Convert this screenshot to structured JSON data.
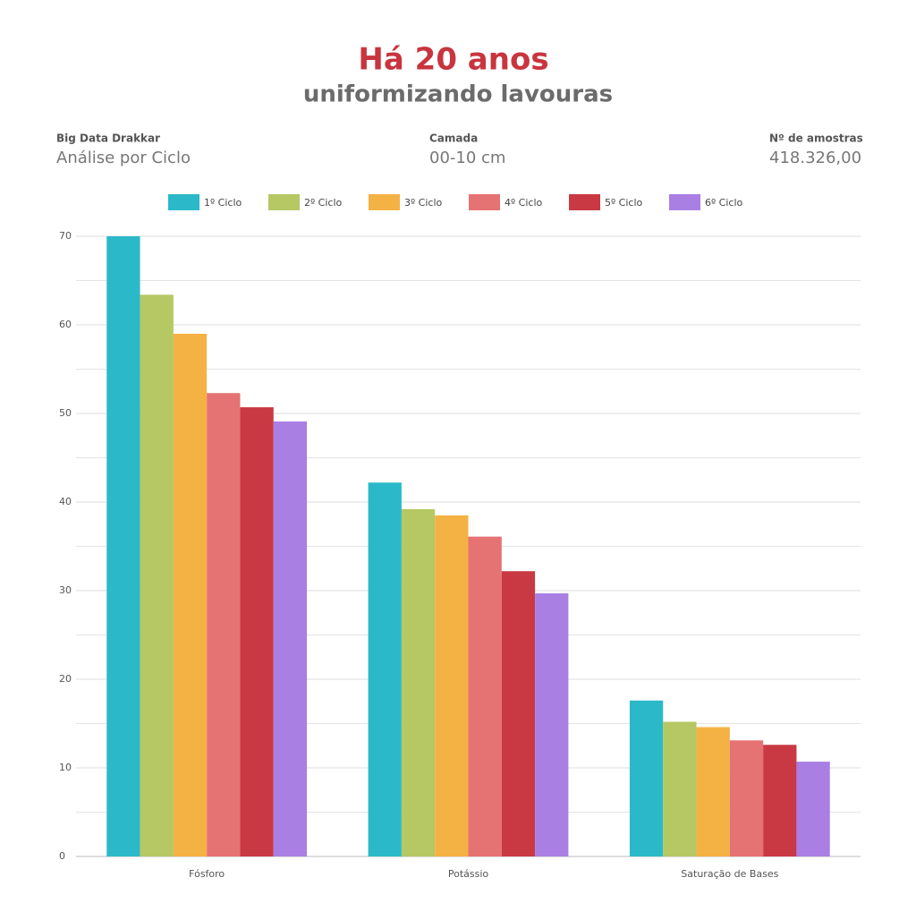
{
  "chart_data": {
    "type": "bar",
    "title": "Há 20 anos",
    "subtitle": "uniformizando lavouras",
    "header_info": [
      {
        "label": "Big Data Drakkar",
        "value": "Análise por Ciclo"
      },
      {
        "label": "Camada",
        "value": "00-10 cm"
      },
      {
        "label": "Nº de amostras",
        "value": "418.326,00"
      }
    ],
    "categories": [
      "Fósforo",
      "Potássio",
      "Saturação de Bases"
    ],
    "series": [
      {
        "name": "1º Ciclo",
        "color": "#2bb9c9",
        "values": [
          70,
          42.2,
          17.6
        ]
      },
      {
        "name": "2º Ciclo",
        "color": "#b5c864",
        "values": [
          63.4,
          39.2,
          15.2
        ]
      },
      {
        "name": "3º Ciclo",
        "color": "#f5b244",
        "values": [
          59,
          38.5,
          14.6
        ]
      },
      {
        "name": "4º Ciclo",
        "color": "#e57373",
        "values": [
          52.3,
          36.1,
          13.1
        ]
      },
      {
        "name": "5º Ciclo",
        "color": "#c93944",
        "values": [
          50.7,
          32.2,
          12.6
        ]
      },
      {
        "name": "6º Ciclo",
        "color": "#a97fe3",
        "values": [
          49.1,
          29.7,
          10.7
        ]
      }
    ],
    "ylim": [
      0,
      70
    ],
    "yticks": [
      0,
      10,
      20,
      30,
      40,
      50,
      60,
      70
    ],
    "y_minor_ticks": [
      5,
      15,
      25,
      35,
      45,
      55,
      65
    ],
    "grid": true
  }
}
